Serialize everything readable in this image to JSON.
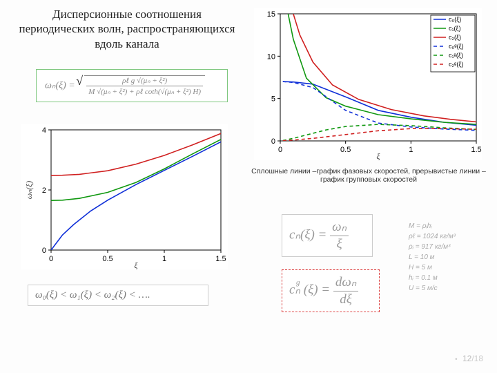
{
  "title": "Дисперсионные соотношения периодических волн, распространяющихся вдоль канала",
  "caption": "Сплошные линии –график фазовых скоростей, прерывистые линии – график групповых скоростей",
  "pagenum": {
    "current": "12",
    "total": "/18"
  },
  "formula_main_lhs": "ωₙ(ξ) = ",
  "formula_main": {
    "num": "ρℓ g √(μₙ + ξ²)",
    "den": "M √(μₙ + ξ²) + ρℓ coth(√(μₙ + ξ²) H)"
  },
  "formula_ineq": "ω₀(ξ) < ω₁(ξ) < ω₂(ξ) < ….",
  "formula_cn": {
    "lhs": "cₙ(ξ) = ",
    "num": "ωₙ",
    "den": "ξ"
  },
  "formula_cng": {
    "lhs": "cₙ (ξ) = ",
    "sup": "g",
    "num": "dωₙ",
    "den": "dξ"
  },
  "params": {
    "l1": "M = ρᵢhᵢ",
    "l2": "ρℓ = 1024 кг/м³",
    "l3": "ρᵢ = 917 кг/м³",
    "l4": "L = 10 м",
    "l5": "H = 5 м",
    "l6": "hᵢ = 0.1 м",
    "l7": "U = 5 м/с"
  },
  "chart_omega": {
    "type": "line",
    "background_color": "#ffffff",
    "xlim": [
      0,
      1.5
    ],
    "ylim": [
      0,
      4
    ],
    "xticks": [
      0,
      0.5,
      1,
      1.5
    ],
    "yticks": [
      0,
      2,
      4
    ],
    "xlabel": "ξ",
    "ylabel": "ωₙ(ξ)",
    "label_fontsize": 12,
    "tick_fontsize": 11,
    "grid": false,
    "line_width": 1.6,
    "series": [
      {
        "name": "ω0",
        "color": "#1030d8",
        "dash": "none",
        "x": [
          0,
          0.1,
          0.2,
          0.35,
          0.5,
          0.75,
          1.0,
          1.25,
          1.5
        ],
        "y": [
          0.0,
          0.5,
          0.85,
          1.3,
          1.66,
          2.18,
          2.65,
          3.12,
          3.6
        ]
      },
      {
        "name": "ω1",
        "color": "#109810",
        "dash": "none",
        "x": [
          0,
          0.1,
          0.25,
          0.5,
          0.75,
          1.0,
          1.25,
          1.5
        ],
        "y": [
          1.65,
          1.66,
          1.72,
          1.92,
          2.25,
          2.7,
          3.2,
          3.68
        ]
      },
      {
        "name": "ω2",
        "color": "#d02020",
        "dash": "none",
        "x": [
          0,
          0.1,
          0.25,
          0.5,
          0.75,
          1.0,
          1.25,
          1.5
        ],
        "y": [
          2.48,
          2.49,
          2.52,
          2.64,
          2.86,
          3.15,
          3.5,
          3.88
        ]
      }
    ]
  },
  "chart_c": {
    "type": "line",
    "background_color": "#ffffff",
    "xlim": [
      0,
      1.5
    ],
    "ylim": [
      0,
      15
    ],
    "xticks": [
      0,
      0.5,
      1,
      1.5
    ],
    "yticks": [
      0,
      5,
      10,
      15
    ],
    "xlabel": "ξ",
    "label_fontsize": 12,
    "tick_fontsize": 11,
    "legend": {
      "pos": "top-right",
      "items": [
        {
          "label": "c₀(ξ)",
          "color": "#1030d8",
          "dash": "none"
        },
        {
          "label": "c₁(ξ)",
          "color": "#109810",
          "dash": "none"
        },
        {
          "label": "c₂(ξ)",
          "color": "#d02020",
          "dash": "none"
        },
        {
          "label": "c₀ᵍ(ξ)",
          "color": "#1030d8",
          "dash": "5,4"
        },
        {
          "label": "c₁ᵍ(ξ)",
          "color": "#109810",
          "dash": "5,4"
        },
        {
          "label": "c₂ᵍ(ξ)",
          "color": "#d02020",
          "dash": "5,4"
        }
      ]
    },
    "grid": false,
    "line_width": 1.6,
    "series": [
      {
        "name": "c0",
        "color": "#1030d8",
        "dash": "none",
        "x": [
          0.02,
          0.1,
          0.25,
          0.5,
          0.75,
          1.0,
          1.25,
          1.5
        ],
        "y": [
          7.0,
          6.95,
          6.7,
          5.2,
          3.6,
          2.8,
          2.2,
          1.85
        ]
      },
      {
        "name": "c1",
        "color": "#109810",
        "dash": "none",
        "x": [
          0.06,
          0.1,
          0.2,
          0.35,
          0.5,
          0.75,
          1.0,
          1.25,
          1.5
        ],
        "y": [
          15.0,
          12.0,
          7.4,
          5.1,
          4.1,
          3.1,
          2.6,
          2.2,
          1.95
        ]
      },
      {
        "name": "c2",
        "color": "#d02020",
        "dash": "none",
        "x": [
          0.1,
          0.15,
          0.25,
          0.4,
          0.6,
          0.85,
          1.1,
          1.3,
          1.5
        ],
        "y": [
          15.0,
          12.5,
          9.3,
          6.6,
          4.9,
          3.7,
          2.95,
          2.55,
          2.25
        ]
      },
      {
        "name": "c0g",
        "color": "#1030d8",
        "dash": "5,4",
        "x": [
          0.02,
          0.1,
          0.25,
          0.5,
          0.75,
          1.0,
          1.25,
          1.5
        ],
        "y": [
          7.0,
          6.9,
          6.3,
          3.6,
          2.1,
          1.65,
          1.4,
          1.25
        ]
      },
      {
        "name": "c1g",
        "color": "#109810",
        "dash": "5,4",
        "x": [
          0.02,
          0.1,
          0.2,
          0.35,
          0.5,
          0.75,
          1.0,
          1.25,
          1.5
        ],
        "y": [
          0.05,
          0.3,
          0.7,
          1.3,
          1.7,
          1.95,
          1.8,
          1.55,
          1.35
        ]
      },
      {
        "name": "c2g",
        "color": "#d02020",
        "dash": "5,4",
        "x": [
          0.02,
          0.1,
          0.25,
          0.5,
          0.75,
          1.0,
          1.25,
          1.5
        ],
        "y": [
          0.02,
          0.1,
          0.3,
          0.75,
          1.2,
          1.45,
          1.45,
          1.38
        ]
      }
    ]
  }
}
